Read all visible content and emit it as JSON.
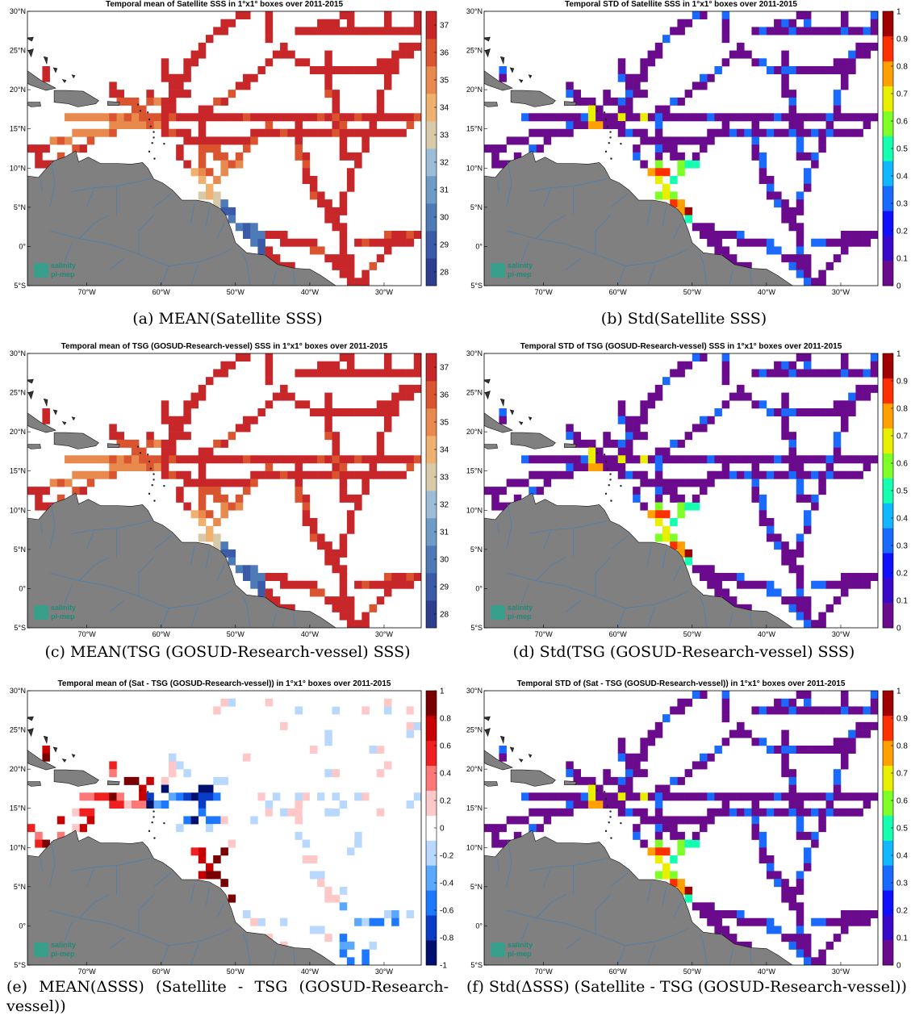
{
  "panels": [
    {
      "id": "a",
      "title": "Temporal mean of Satellite SSS in 1°x1° boxes over 2011-2015",
      "caption": "(a) MEAN(Satellite SSS)",
      "colorbar": {
        "palette": "mean",
        "min": 27.5,
        "max": 37.5,
        "ticks": [
          "28",
          "29",
          "30",
          "31",
          "32",
          "33",
          "34",
          "35",
          "36",
          "37"
        ]
      },
      "logo": [
        "salinity",
        "pi-mep"
      ]
    },
    {
      "id": "b",
      "title": "Temporal STD of Satellite SSS in 1°x1° boxes over 2011-2015",
      "caption": "(b) Std(Satellite SSS)",
      "colorbar": {
        "palette": "std",
        "min": 0,
        "max": 1,
        "ticks": [
          "0",
          "0.1",
          "0.2",
          "0.3",
          "0.4",
          "0.5",
          "0.6",
          "0.7",
          "0.8",
          "0.9",
          "1"
        ]
      },
      "logo": [
        "salinity",
        "pi-mep"
      ]
    },
    {
      "id": "c",
      "title": "Temporal mean of TSG (GOSUD-Research-vessel) SSS in 1°x1° boxes over 2011-2015",
      "caption": "(c) MEAN(TSG (GOSUD-Research-vessel) SSS)",
      "colorbar": {
        "palette": "mean",
        "min": 27.5,
        "max": 37.5,
        "ticks": [
          "28",
          "29",
          "30",
          "31",
          "32",
          "33",
          "34",
          "35",
          "36",
          "37"
        ]
      },
      "logo": [
        "salinity",
        "pi-mep"
      ]
    },
    {
      "id": "d",
      "title": "Temporal STD of TSG (GOSUD-Research-vessel) SSS in 1°x1° boxes over 2011-2015",
      "caption": "(d) Std(TSG (GOSUD-Research-vessel) SSS)",
      "colorbar": {
        "palette": "std",
        "min": 0,
        "max": 1,
        "ticks": [
          "0",
          "0.1",
          "0.2",
          "0.3",
          "0.4",
          "0.5",
          "0.6",
          "0.7",
          "0.8",
          "0.9",
          "1"
        ]
      },
      "logo": [
        "salinity",
        "pi-mep"
      ]
    },
    {
      "id": "e",
      "title": "Temporal mean of (Sat - TSG (GOSUD-Research-vessel)) in 1°x1° boxes over 2011-2015",
      "caption": "(e) MEAN(ΔSSS) (Satellite - TSG (GOSUD-Research-vessel))",
      "colorbar": {
        "palette": "diff",
        "min": -1,
        "max": 1,
        "ticks": [
          "-1",
          "-0.8",
          "-0.6",
          "-0.4",
          "-0.2",
          "0",
          "0.2",
          "0.4",
          "0.6",
          "0.8",
          "1"
        ]
      },
      "logo": [
        "salinity",
        "pi-mep"
      ]
    },
    {
      "id": "f",
      "title": "Temporal STD of (Sat - TSG (GOSUD-Research-vessel)) in 1°x1° boxes over 2011-2015",
      "caption": "(f) Std(ΔSSS) (Satellite - TSG (GOSUD-Research-vessel))",
      "colorbar": {
        "palette": "std",
        "min": 0,
        "max": 1,
        "ticks": [
          "0",
          "0.1",
          "0.2",
          "0.3",
          "0.4",
          "0.5",
          "0.6",
          "0.7",
          "0.8",
          "0.9",
          "1"
        ]
      },
      "logo": [
        "salinity",
        "pi-mep"
      ]
    }
  ],
  "axes": {
    "lon_range": [
      -78,
      -25
    ],
    "lat_range": [
      -5,
      30
    ],
    "lat_ticks": [
      {
        "value": 30,
        "label": "30°N"
      },
      {
        "value": 25,
        "label": "25°N"
      },
      {
        "value": 20,
        "label": "20°N"
      },
      {
        "value": 15,
        "label": "15°N"
      },
      {
        "value": 10,
        "label": "10°N"
      },
      {
        "value": 5,
        "label": "5°N"
      },
      {
        "value": 0,
        "label": "0°"
      },
      {
        "value": -5,
        "label": "5°S"
      }
    ],
    "lon_ticks": [
      {
        "value": -70,
        "label": "70°W"
      },
      {
        "value": -60,
        "label": "60°W"
      },
      {
        "value": -50,
        "label": "50°W"
      },
      {
        "value": -40,
        "label": "40°W"
      },
      {
        "value": -30,
        "label": "30°W"
      }
    ]
  },
  "colors": {
    "land": "#808080",
    "rivers": "#4a7fb0",
    "ocean": "#ffffff"
  }
}
